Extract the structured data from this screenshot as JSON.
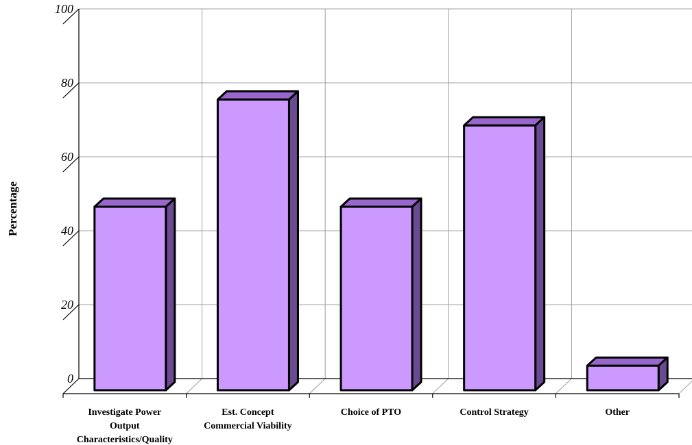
{
  "chart_data": {
    "type": "bar",
    "title": "",
    "xlabel": "",
    "ylabel": "Percentage",
    "ylim": [
      0,
      100
    ],
    "yticks": [
      0,
      20,
      40,
      60,
      80,
      100
    ],
    "grid": true,
    "legend": "none",
    "categories": [
      [
        "Investigate Power",
        "Output",
        "Characteristics/Quality"
      ],
      [
        "Est. Concept",
        "Commercial Viability"
      ],
      [
        "Choice of PTO"
      ],
      [
        "Control Strategy"
      ],
      [
        "Other"
      ]
    ],
    "values": [
      50,
      79,
      50,
      72,
      7
    ],
    "colors": {
      "bar_front": "#cc99ff",
      "bar_top": "#9966cc",
      "bar_side": "#6a4a92",
      "grid": "#a0a0a0"
    }
  }
}
